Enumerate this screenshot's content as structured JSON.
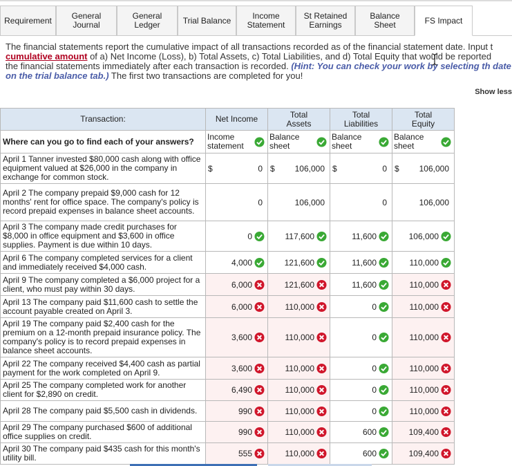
{
  "tabs": [
    {
      "label": "Requirement",
      "active": false
    },
    {
      "label": "General Journal",
      "active": false
    },
    {
      "label": "General Ledger",
      "active": false
    },
    {
      "label": "Trial Balance",
      "active": false
    },
    {
      "label": "Income Statement",
      "active": false
    },
    {
      "label": "St Retained Earnings",
      "active": false
    },
    {
      "label": "Balance Sheet",
      "active": false
    },
    {
      "label": "FS Impact",
      "active": true
    }
  ],
  "instructions": {
    "part1": "The financial statements report the cumulative impact of all transactions recorded as of the financial statement date. Input t",
    "term": "cumulative amount",
    "part2": " of a) Net Income (Loss), b) Total Assets, c) Total Liabilities, and d) Total Equity that would be reported",
    "part3": "the financial statements immediately after each transaction is recorded. ",
    "hint": "(Hint: You can check your work by selecting th date on the trial balance tab.)",
    "part4": " The first two transactions are completed for you!"
  },
  "show_less": "Show less",
  "table": {
    "headers": [
      "Transaction:",
      "Net Income",
      "Total Assets",
      "Total Liabilities",
      "Total Equity"
    ],
    "question": "Where can you go to find each of your answers?",
    "sources": [
      "Income statement",
      "Balance sheet",
      "Balance sheet",
      "Balance sheet"
    ],
    "rows": [
      {
        "text": "April 1   Tanner invested $80,000 cash along with office equipment valued at $26,000 in the company in exchange for common stock.",
        "vals": [
          "0",
          "106,000",
          "0",
          "106,000"
        ],
        "marks": [
          "",
          "",
          "",
          ""
        ],
        "dollar": true
      },
      {
        "text": "April 2   The company prepaid $9,000 cash for 12 months' rent for office space. The company's policy is record prepaid expenses in balance sheet accounts.",
        "vals": [
          "0",
          "106,000",
          "0",
          "106,000"
        ],
        "marks": [
          "",
          "",
          "",
          ""
        ],
        "dollar": false
      },
      {
        "text": "April 3   The company made credit purchases for $8,000 in office equipment and $3,600 in office supplies. Payment is due within 10 days.",
        "vals": [
          "0",
          "117,600",
          "11,600",
          "106,000"
        ],
        "marks": [
          "ok",
          "ok",
          "ok",
          "ok"
        ],
        "dollar": false
      },
      {
        "text": "April 6   The company completed services for a client and immediately received $4,000 cash.",
        "vals": [
          "4,000",
          "121,600",
          "11,600",
          "110,000"
        ],
        "marks": [
          "ok",
          "ok",
          "ok",
          "ok"
        ],
        "dollar": false
      },
      {
        "text": "April 9   The company completed a $6,000 project for a client, who must pay within 30 days.",
        "vals": [
          "6,000",
          "121,600",
          "11,600",
          "110,000"
        ],
        "marks": [
          "x",
          "x",
          "ok",
          "x"
        ],
        "dollar": false
      },
      {
        "text": "April 13   The company paid $11,600 cash to settle the account payable created on April 3.",
        "vals": [
          "6,000",
          "110,000",
          "0",
          "110,000"
        ],
        "marks": [
          "x",
          "x",
          "ok",
          "x"
        ],
        "dollar": false
      },
      {
        "text": "April 19   The company paid $2,400 cash for the premium on a 12-month prepaid insurance policy. The company's policy is to record prepaid expenses in balance sheet accounts.",
        "vals": [
          "3,600",
          "110,000",
          "0",
          "110,000"
        ],
        "marks": [
          "x",
          "x",
          "ok",
          "x"
        ],
        "dollar": false
      },
      {
        "text": "April 22   The company received $4,400 cash as partial payment for the work completed on April 9.",
        "vals": [
          "3,600",
          "110,000",
          "0",
          "110,000"
        ],
        "marks": [
          "x",
          "x",
          "ok",
          "x"
        ],
        "dollar": false
      },
      {
        "text": "April 25   The company completed work for another client for $2,890 on credit.",
        "vals": [
          "6,490",
          "110,000",
          "0",
          "110,000"
        ],
        "marks": [
          "x",
          "x",
          "ok",
          "x"
        ],
        "dollar": false
      },
      {
        "text": "April 28   The company paid $5,500 cash in dividends.",
        "vals": [
          "990",
          "110,000",
          "0",
          "110,000"
        ],
        "marks": [
          "x",
          "x",
          "ok",
          "x"
        ],
        "dollar": false
      },
      {
        "text": "April 29   The company purchased $600 of additional office supplies on credit.",
        "vals": [
          "990",
          "110,000",
          "600",
          "109,400"
        ],
        "marks": [
          "x",
          "x",
          "ok",
          "x"
        ],
        "dollar": false
      },
      {
        "text": "April 30   The company paid $435 cash for this month's utility bill.",
        "vals": [
          "555",
          "110,000",
          "600",
          "109,400"
        ],
        "marks": [
          "x",
          "x",
          "ok",
          "x"
        ],
        "dollar": false
      }
    ]
  },
  "colors": {
    "header_bg": "#dbe6f2",
    "ok": "#3aa935",
    "x": "#d0162b",
    "link": "#4a5ca8"
  }
}
